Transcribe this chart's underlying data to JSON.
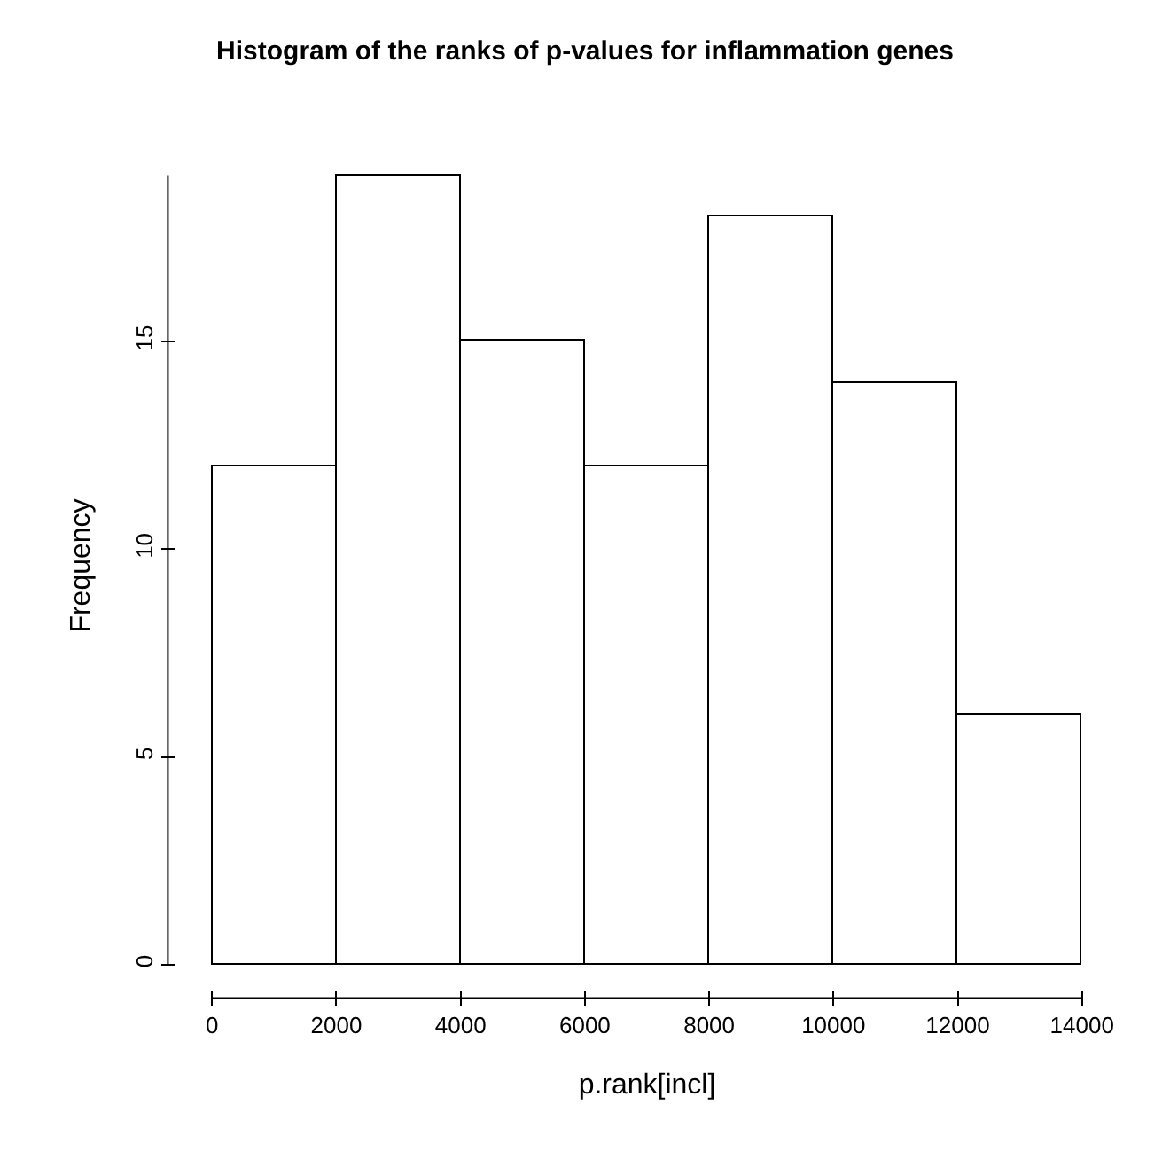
{
  "chart_data": {
    "type": "histogram",
    "title": "Histogram of the ranks of p-values for inflammation genes",
    "xlabel": "p.rank[incl]",
    "ylabel": "Frequency",
    "bins": [
      0,
      2000,
      4000,
      6000,
      8000,
      10000,
      12000,
      14000
    ],
    "values": [
      12,
      19,
      15,
      12,
      18,
      14,
      6
    ],
    "color": "#ffffff",
    "xlim": [
      0,
      14000
    ],
    "xticks": [
      0,
      2000,
      4000,
      6000,
      8000,
      10000,
      12000,
      14000
    ],
    "ylim": [
      0,
      19
    ],
    "yticks": [
      0,
      5,
      10,
      15
    ],
    "grid": false,
    "legend": false
  }
}
